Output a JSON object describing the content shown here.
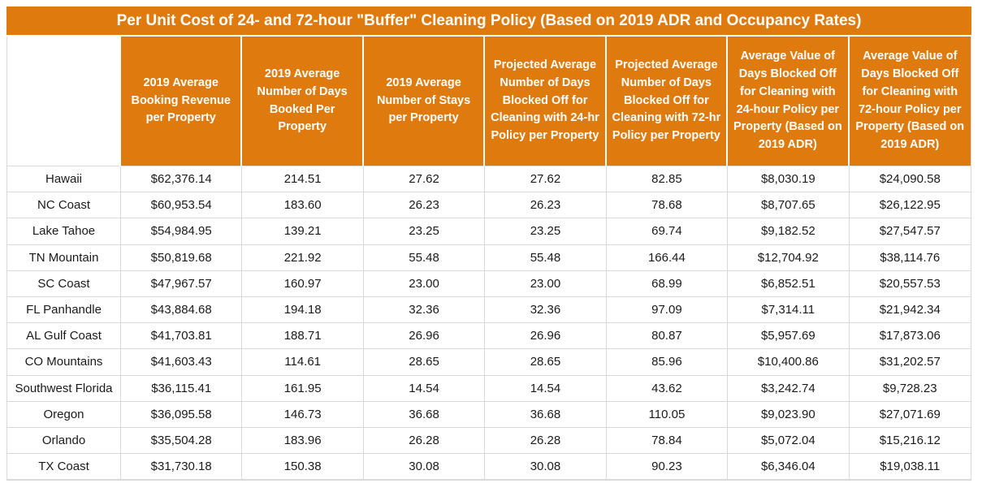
{
  "colors": {
    "header_orange": "#DF7B0E",
    "header_text": "#FFFFFF",
    "grid_border": "#D9D9D9",
    "body_text": "#1A1A1A"
  },
  "chart_data": {
    "type": "table",
    "title": "Per Unit Cost of 24- and 72-hour \"Buffer\" Cleaning Policy (Based on 2019 ADR and Occupancy Rates)",
    "columns": [
      "",
      "2019 Average Booking Revenue per Property",
      "2019 Average Number of Days Booked Per Property",
      "2019 Average Number of Stays per Property",
      "Projected Average Number of Days Blocked Off for Cleaning with 24-hr Policy per Property",
      "Projected Average Number of Days Blocked Off for Cleaning with 72-hr Policy per Property",
      "Average Value of Days Blocked Off for Cleaning with 24-hour Policy per Property (Based on 2019 ADR)",
      "Average Value of Days Blocked Off for Cleaning with 72-hour Policy per Property (Based on 2019 ADR)"
    ],
    "rows": [
      [
        "Hawaii",
        "$62,376.14",
        "214.51",
        "27.62",
        "27.62",
        "82.85",
        "$8,030.19",
        "$24,090.58"
      ],
      [
        "NC Coast",
        "$60,953.54",
        "183.60",
        "26.23",
        "26.23",
        "78.68",
        "$8,707.65",
        "$26,122.95"
      ],
      [
        "Lake Tahoe",
        "$54,984.95",
        "139.21",
        "23.25",
        "23.25",
        "69.74",
        "$9,182.52",
        "$27,547.57"
      ],
      [
        "TN Mountain",
        "$50,819.68",
        "221.92",
        "55.48",
        "55.48",
        "166.44",
        "$12,704.92",
        "$38,114.76"
      ],
      [
        "SC Coast",
        "$47,967.57",
        "160.97",
        "23.00",
        "23.00",
        "68.99",
        "$6,852.51",
        "$20,557.53"
      ],
      [
        "FL Panhandle",
        "$43,884.68",
        "194.18",
        "32.36",
        "32.36",
        "97.09",
        "$7,314.11",
        "$21,942.34"
      ],
      [
        "AL Gulf Coast",
        "$41,703.81",
        "188.71",
        "26.96",
        "26.96",
        "80.87",
        "$5,957.69",
        "$17,873.06"
      ],
      [
        "CO Mountains",
        "$41,603.43",
        "114.61",
        "28.65",
        "28.65",
        "85.96",
        "$10,400.86",
        "$31,202.57"
      ],
      [
        "Southwest Florida",
        "$36,115.41",
        "161.95",
        "14.54",
        "14.54",
        "43.62",
        "$3,242.74",
        "$9,728.23"
      ],
      [
        "Oregon",
        "$36,095.58",
        "146.73",
        "36.68",
        "36.68",
        "110.05",
        "$9,023.90",
        "$27,071.69"
      ],
      [
        "Orlando",
        "$35,504.28",
        "183.96",
        "26.28",
        "26.28",
        "78.84",
        "$5,072.04",
        "$15,216.12"
      ],
      [
        "TX Coast",
        "$31,730.18",
        "150.38",
        "30.08",
        "30.08",
        "90.23",
        "$6,346.04",
        "$19,038.11"
      ]
    ]
  }
}
